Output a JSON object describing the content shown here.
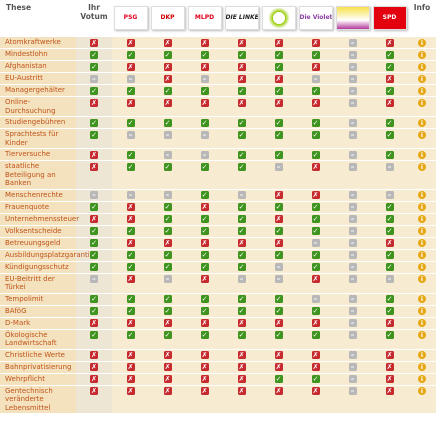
{
  "header": {
    "topic": "These",
    "vote": "Ihr Votum",
    "info": "Info",
    "parties": [
      "PSG",
      "DKP",
      "MLPD",
      "DIE LINKE.",
      null,
      "Die Violetten",
      null,
      "SPD"
    ]
  },
  "cell_colors": {
    "✓": "#3f9420",
    "✗": "#c62a2f",
    "–": "#b8b8b8"
  },
  "info_icon": "i",
  "rows": [
    {
      "topic": "Atomkraftwerke",
      "cells": [
        "✗",
        "✗",
        "✗",
        "✗",
        "✗",
        "✗",
        "✗",
        "–",
        "✗"
      ]
    },
    {
      "topic": "Mindestlohn",
      "cells": [
        "✓",
        "✓",
        "✓",
        "✓",
        "✓",
        "✓",
        "✓",
        "–",
        "✓"
      ]
    },
    {
      "topic": "Afghanistan",
      "cells": [
        "✓",
        "✗",
        "✗",
        "✗",
        "✗",
        "✓",
        "✗",
        "–",
        "✓"
      ]
    },
    {
      "topic": "EU-Austritt",
      "cells": [
        "–",
        "–",
        "✗",
        "–",
        "✗",
        "✗",
        "–",
        "–",
        "✗"
      ]
    },
    {
      "topic": "Managergehälter",
      "cells": [
        "✓",
        "✓",
        "✓",
        "✓",
        "✓",
        "✓",
        "✓",
        "–",
        "✓"
      ]
    },
    {
      "topic": "Online-Durchsuchung",
      "cells": [
        "✗",
        "✗",
        "✗",
        "✗",
        "✗",
        "✗",
        "✗",
        "–",
        "✗"
      ]
    },
    {
      "topic": "Studiengebühren",
      "cells": [
        "✓",
        "✓",
        "✓",
        "✓",
        "✓",
        "✓",
        "✓",
        "–",
        "✓"
      ]
    },
    {
      "topic": "Sprachtests für Kinder",
      "cells": [
        "✓",
        "–",
        "–",
        "–",
        "✓",
        "✓",
        "✓",
        "–",
        "✓"
      ]
    },
    {
      "topic": "Tierversuche",
      "cells": [
        "✗",
        "✓",
        "–",
        "–",
        "✓",
        "✓",
        "✓",
        "–",
        "✓"
      ]
    },
    {
      "topic": "staatliche Beteiligung an Banken",
      "cells": [
        "✗",
        "✓",
        "✓",
        "✓",
        "✓",
        "–",
        "✗",
        "–",
        "–"
      ]
    },
    {
      "topic": "Menschenrechte",
      "cells": [
        "–",
        "–",
        "–",
        "✓",
        "–",
        "✗",
        "✗",
        "–",
        "–"
      ]
    },
    {
      "topic": "Frauenquote",
      "cells": [
        "✓",
        "✗",
        "✓",
        "✗",
        "✓",
        "✓",
        "✓",
        "–",
        "✓"
      ]
    },
    {
      "topic": "Unternehmenssteuer",
      "cells": [
        "✗",
        "✗",
        "✓",
        "✓",
        "✓",
        "✗",
        "✓",
        "–",
        "✓"
      ]
    },
    {
      "topic": "Volksentscheide",
      "cells": [
        "✓",
        "✓",
        "✓",
        "✓",
        "✓",
        "✓",
        "✓",
        "–",
        "✓"
      ]
    },
    {
      "topic": "Betreuungsgeld",
      "cells": [
        "✓",
        "✗",
        "✗",
        "✗",
        "✗",
        "✗",
        "–",
        "–",
        "✗"
      ]
    },
    {
      "topic": "Ausbildungsplatzgarantie",
      "cells": [
        "✓",
        "✓",
        "✓",
        "✓",
        "✓",
        "✓",
        "✓",
        "–",
        "✓"
      ]
    },
    {
      "topic": "Kündigungsschutz",
      "cells": [
        "✓",
        "✓",
        "✓",
        "✓",
        "✓",
        "–",
        "✓",
        "–",
        "✓"
      ]
    },
    {
      "topic": "EU-Beitritt der Türkei",
      "cells": [
        "–",
        "✗",
        "–",
        "✗",
        "–",
        "–",
        "✗",
        "–",
        "–"
      ]
    },
    {
      "topic": "Tempolimit",
      "cells": [
        "✓",
        "✓",
        "✓",
        "✓",
        "✓",
        "✓",
        "–",
        "–",
        "✓"
      ]
    },
    {
      "topic": "BAföG",
      "cells": [
        "✓",
        "✓",
        "✓",
        "✓",
        "✓",
        "✓",
        "✓",
        "–",
        "✓"
      ]
    },
    {
      "topic": "D-Mark",
      "cells": [
        "✗",
        "✗",
        "✗",
        "✗",
        "✗",
        "✗",
        "✗",
        "–",
        "✗"
      ]
    },
    {
      "topic": "Ökologische Landwirtschaft",
      "cells": [
        "✓",
        "✓",
        "✓",
        "✓",
        "✓",
        "✓",
        "✓",
        "–",
        "✓"
      ]
    },
    {
      "topic": "Christliche Werte",
      "cells": [
        "✗",
        "✗",
        "✗",
        "✗",
        "✗",
        "✗",
        "✗",
        "–",
        "✗"
      ]
    },
    {
      "topic": "Bahnprivatisierung",
      "cells": [
        "✗",
        "✗",
        "✗",
        "✗",
        "✗",
        "✗",
        "✗",
        "–",
        "✗"
      ]
    },
    {
      "topic": "Wehrpflicht",
      "cells": [
        "✗",
        "✗",
        "✗",
        "✗",
        "✗",
        "✓",
        "✓",
        "–",
        "✗"
      ]
    },
    {
      "topic": "Gentechnisch veränderte Lebensmittel",
      "cells": [
        "✗",
        "✗",
        "✗",
        "✗",
        "✗",
        "✗",
        "✗",
        "–",
        "✗"
      ]
    }
  ]
}
